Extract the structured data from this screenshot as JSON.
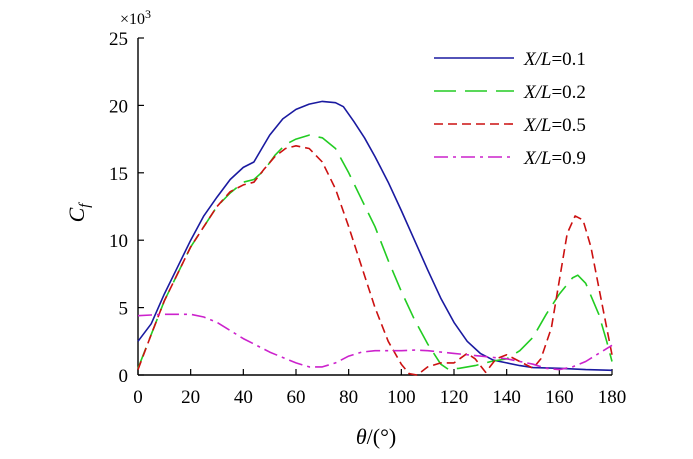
{
  "chart_data": {
    "type": "line",
    "title": "",
    "xlabel_var": "θ",
    "xlabel_unit": "/(°)",
    "ylabel_var": "C",
    "ylabel_sub": "f",
    "y_multiplier": "×10",
    "y_multiplier_exp": "3",
    "xlim": [
      0,
      180
    ],
    "ylim": [
      0,
      25
    ],
    "x_ticks": [
      "0",
      "20",
      "40",
      "60",
      "80",
      "100",
      "120",
      "140",
      "160",
      "180"
    ],
    "y_ticks": [
      "0",
      "5",
      "10",
      "15",
      "20",
      "25"
    ],
    "grid": false,
    "legend_position": "top-right",
    "series": [
      {
        "name_var": "X/L",
        "name_val": "=0.1",
        "color": "#1a1aa0",
        "style": "solid",
        "points": [
          [
            0,
            2.5
          ],
          [
            5,
            3.8
          ],
          [
            10,
            6
          ],
          [
            15,
            8
          ],
          [
            20,
            10
          ],
          [
            25,
            11.8
          ],
          [
            30,
            13.2
          ],
          [
            35,
            14.5
          ],
          [
            40,
            15.4
          ],
          [
            44,
            15.8
          ],
          [
            47,
            16.8
          ],
          [
            50,
            17.8
          ],
          [
            55,
            19
          ],
          [
            60,
            19.7
          ],
          [
            65,
            20.1
          ],
          [
            70,
            20.3
          ],
          [
            75,
            20.2
          ],
          [
            78,
            19.9
          ],
          [
            82,
            18.8
          ],
          [
            86,
            17.6
          ],
          [
            90,
            16.2
          ],
          [
            95,
            14.3
          ],
          [
            100,
            12.2
          ],
          [
            105,
            10
          ],
          [
            110,
            7.8
          ],
          [
            115,
            5.7
          ],
          [
            120,
            3.9
          ],
          [
            125,
            2.5
          ],
          [
            130,
            1.6
          ],
          [
            135,
            1.1
          ],
          [
            140,
            0.9
          ],
          [
            145,
            0.7
          ],
          [
            150,
            0.55
          ],
          [
            160,
            0.5
          ],
          [
            170,
            0.4
          ],
          [
            180,
            0.35
          ]
        ]
      },
      {
        "name_var": "X/L",
        "name_val": "=0.2",
        "color": "#22cc22",
        "style": "dashed",
        "points": [
          [
            0,
            0.5
          ],
          [
            5,
            3
          ],
          [
            10,
            5.5
          ],
          [
            15,
            7.5
          ],
          [
            20,
            9.5
          ],
          [
            25,
            11
          ],
          [
            30,
            12.5
          ],
          [
            35,
            13.5
          ],
          [
            40,
            14.3
          ],
          [
            44,
            14.5
          ],
          [
            48,
            15.2
          ],
          [
            52,
            16.3
          ],
          [
            56,
            17.1
          ],
          [
            60,
            17.5
          ],
          [
            65,
            17.8
          ],
          [
            70,
            17.6
          ],
          [
            75,
            16.8
          ],
          [
            80,
            15
          ],
          [
            85,
            13
          ],
          [
            90,
            11
          ],
          [
            95,
            8.5
          ],
          [
            100,
            6.2
          ],
          [
            105,
            4.1
          ],
          [
            110,
            2.3
          ],
          [
            115,
            0.8
          ],
          [
            118,
            0.4
          ],
          [
            122,
            0.5
          ],
          [
            128,
            0.7
          ],
          [
            134,
            1
          ],
          [
            140,
            1.2
          ],
          [
            145,
            1.8
          ],
          [
            150,
            2.8
          ],
          [
            155,
            4.5
          ],
          [
            160,
            6
          ],
          [
            165,
            7.2
          ],
          [
            167,
            7.4
          ],
          [
            170,
            6.8
          ],
          [
            175,
            4.5
          ],
          [
            178,
            2.5
          ],
          [
            180,
            1
          ]
        ]
      },
      {
        "name_var": "X/L",
        "name_val": "=0.5",
        "color": "#cc1111",
        "style": "short-dashed",
        "points": [
          [
            0,
            0.4
          ],
          [
            5,
            3
          ],
          [
            10,
            5.5
          ],
          [
            15,
            7.5
          ],
          [
            20,
            9.5
          ],
          [
            25,
            11
          ],
          [
            30,
            12.5
          ],
          [
            35,
            13.6
          ],
          [
            40,
            14.1
          ],
          [
            44,
            14.3
          ],
          [
            48,
            15.3
          ],
          [
            52,
            16.2
          ],
          [
            56,
            16.8
          ],
          [
            60,
            17
          ],
          [
            65,
            16.8
          ],
          [
            70,
            15.8
          ],
          [
            75,
            13.8
          ],
          [
            80,
            11
          ],
          [
            85,
            8
          ],
          [
            90,
            5
          ],
          [
            95,
            2.5
          ],
          [
            100,
            0.8
          ],
          [
            103,
            0.1
          ],
          [
            106,
            0
          ],
          [
            110,
            0.6
          ],
          [
            115,
            0.9
          ],
          [
            120,
            0.9
          ],
          [
            125,
            1.6
          ],
          [
            128,
            1.2
          ],
          [
            132,
            0.2
          ],
          [
            136,
            1.2
          ],
          [
            140,
            1.5
          ],
          [
            145,
            1
          ],
          [
            150,
            0.5
          ],
          [
            153,
            1.2
          ],
          [
            157,
            3.5
          ],
          [
            160,
            7
          ],
          [
            163,
            10.5
          ],
          [
            166,
            11.8
          ],
          [
            169,
            11.5
          ],
          [
            172,
            9.5
          ],
          [
            175,
            6.5
          ],
          [
            178,
            3.5
          ],
          [
            180,
            1.5
          ]
        ]
      },
      {
        "name_var": "X/L",
        "name_val": "=0.9",
        "color": "#cc22cc",
        "style": "dash-dot",
        "points": [
          [
            0,
            4.4
          ],
          [
            5,
            4.45
          ],
          [
            10,
            4.5
          ],
          [
            20,
            4.5
          ],
          [
            25,
            4.3
          ],
          [
            30,
            3.9
          ],
          [
            35,
            3.3
          ],
          [
            40,
            2.7
          ],
          [
            45,
            2.2
          ],
          [
            50,
            1.7
          ],
          [
            55,
            1.3
          ],
          [
            60,
            0.9
          ],
          [
            65,
            0.6
          ],
          [
            70,
            0.6
          ],
          [
            75,
            0.9
          ],
          [
            80,
            1.4
          ],
          [
            85,
            1.7
          ],
          [
            90,
            1.8
          ],
          [
            100,
            1.8
          ],
          [
            105,
            1.85
          ],
          [
            110,
            1.8
          ],
          [
            120,
            1.6
          ],
          [
            130,
            1.4
          ],
          [
            140,
            1.2
          ],
          [
            150,
            0.8
          ],
          [
            155,
            0.5
          ],
          [
            160,
            0.4
          ],
          [
            165,
            0.6
          ],
          [
            170,
            1
          ],
          [
            175,
            1.6
          ],
          [
            180,
            2.2
          ]
        ]
      }
    ]
  }
}
